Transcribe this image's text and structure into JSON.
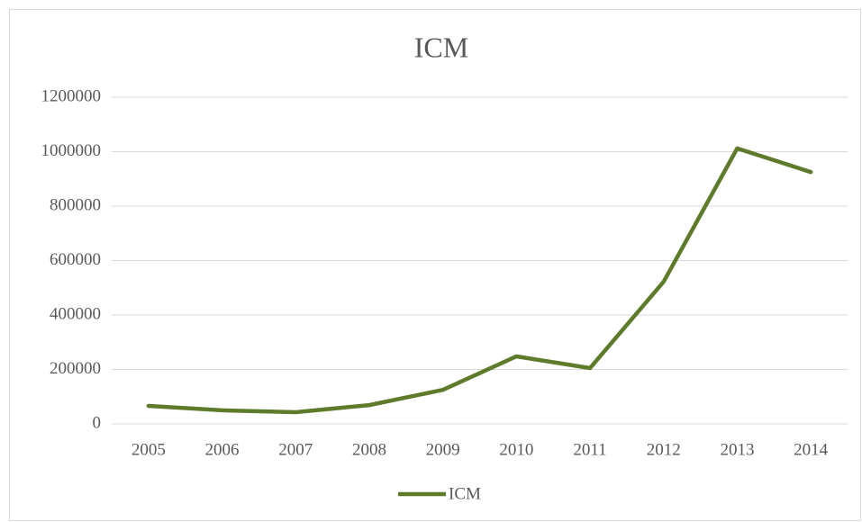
{
  "chart_data": {
    "type": "line",
    "title": "ICM",
    "categories": [
      "2005",
      "2006",
      "2007",
      "2008",
      "2009",
      "2010",
      "2011",
      "2012",
      "2013",
      "2014"
    ],
    "series": [
      {
        "name": "ICM",
        "color": "#5e7b2c",
        "values": [
          66000,
          50000,
          43000,
          69000,
          125000,
          248000,
          205000,
          522000,
          1012000,
          925000
        ]
      }
    ],
    "ylim": [
      0,
      1200000
    ],
    "yticks": [
      0,
      200000,
      400000,
      600000,
      800000,
      1000000,
      1200000
    ],
    "grid": true,
    "legend": "bottom"
  }
}
